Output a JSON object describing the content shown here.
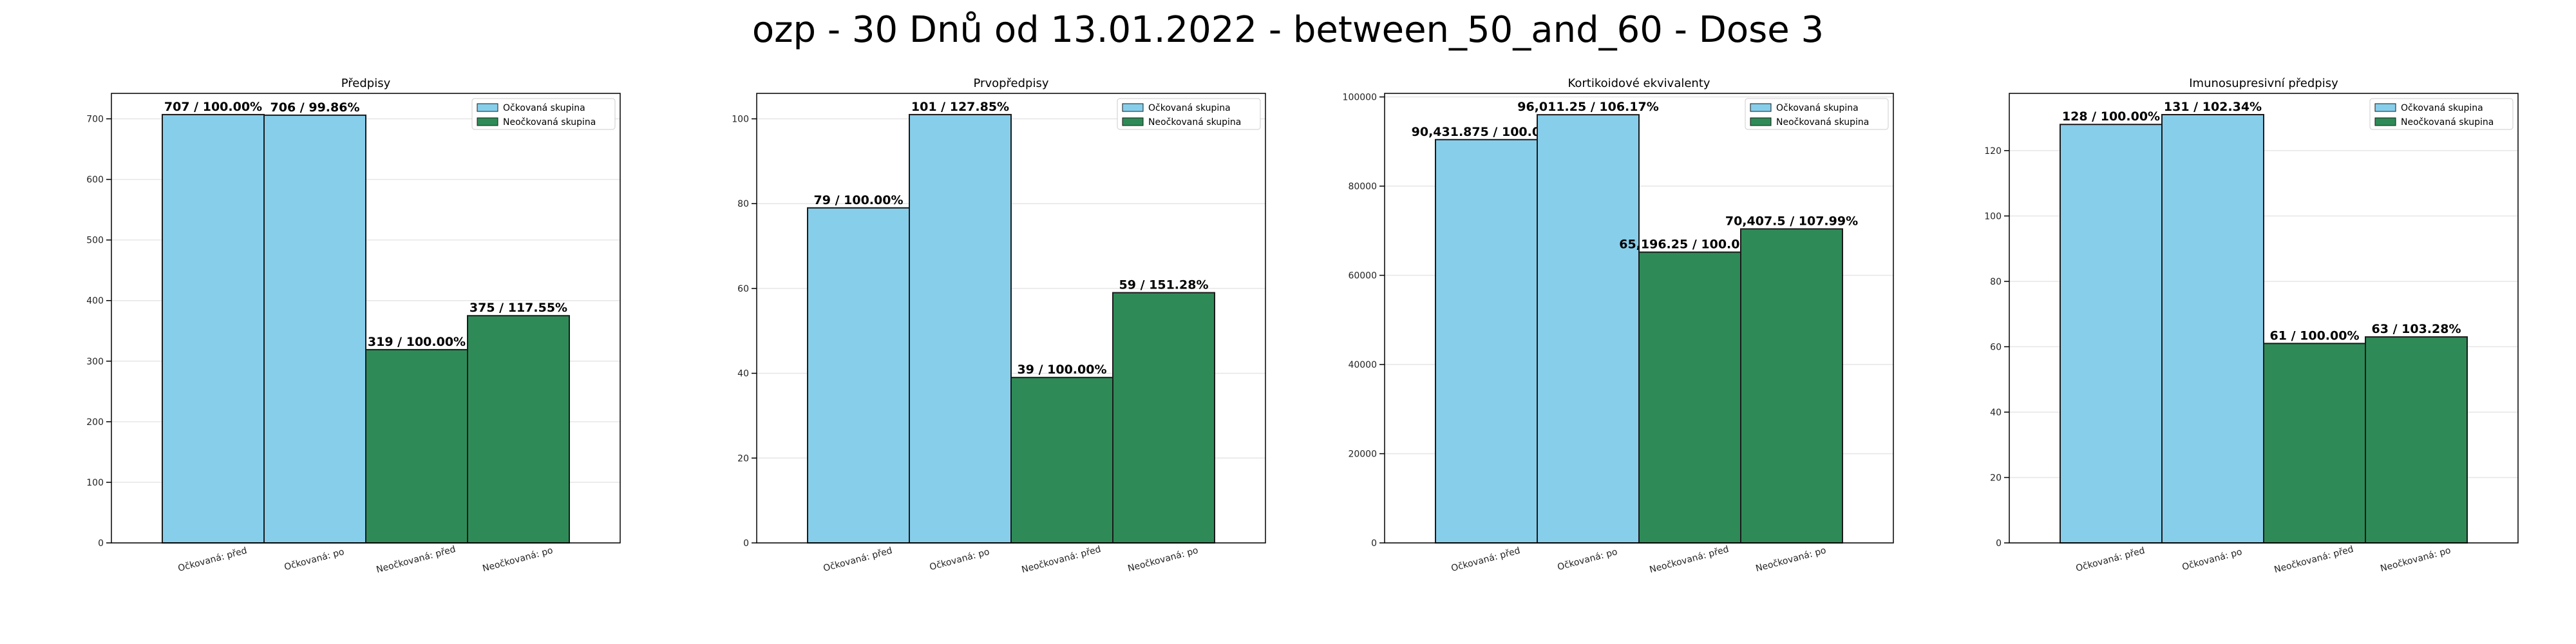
{
  "figure": {
    "title": "ozp - 30 Dnů od 13.01.2022 - between_50_and_60 - Dose 3"
  },
  "legend": {
    "entries": [
      "Očkovaná skupina",
      "Neočkovaná skupina"
    ],
    "colors": [
      "#87CEEB",
      "#2E8B57"
    ],
    "placement": "top-right"
  },
  "chart_data": [
    {
      "type": "bar",
      "title": "Předpisy",
      "categories": [
        "Očkovaná: před",
        "Očkovaná: po",
        "Neočkovaná: před",
        "Neočkovaná: po"
      ],
      "values": [
        707,
        706,
        319,
        375
      ],
      "labels": [
        "707 / 100.00%",
        "706 / 99.86%",
        "319 / 100.00%",
        "375 / 117.55%"
      ],
      "ylim": [
        0,
        742
      ],
      "yticks": [
        0,
        100,
        200,
        300,
        400,
        500,
        600,
        700
      ],
      "grid": true
    },
    {
      "type": "bar",
      "title": "Prvopředpisy",
      "categories": [
        "Očkovaná: před",
        "Očkovaná: po",
        "Neočkovaná: před",
        "Neočkovaná: po"
      ],
      "values": [
        79,
        101,
        39,
        59
      ],
      "labels": [
        "79 / 100.00%",
        "101 / 127.85%",
        "39 / 100.00%",
        "59 / 151.28%"
      ],
      "ylim": [
        0,
        106
      ],
      "yticks": [
        0,
        20,
        40,
        60,
        80,
        100
      ],
      "grid": true
    },
    {
      "type": "bar",
      "title": "Kortikoidové ekvivalenty",
      "categories": [
        "Očkovaná: před",
        "Očkovaná: po",
        "Neočkovaná: před",
        "Neočkovaná: po"
      ],
      "values": [
        90431.875,
        96011.25,
        65196.25,
        70407.5
      ],
      "labels": [
        "90,431.875 / 100.00%",
        "96,011.25 / 106.17%",
        "65,196.25 / 100.00%",
        "70,407.5 / 107.99%"
      ],
      "ylim": [
        0,
        100800
      ],
      "yticks": [
        0,
        20000,
        40000,
        60000,
        80000,
        100000
      ],
      "grid": true
    },
    {
      "type": "bar",
      "title": "Imunosupresivní předpisy",
      "categories": [
        "Očkovaná: před",
        "Očkovaná: po",
        "Neočkovaná: před",
        "Neočkovaná: po"
      ],
      "values": [
        128,
        131,
        61,
        63
      ],
      "labels": [
        "128 / 100.00%",
        "131 / 102.34%",
        "61 / 100.00%",
        "63 / 103.28%"
      ],
      "ylim": [
        0,
        137.5
      ],
      "yticks": [
        0,
        20,
        40,
        60,
        80,
        100,
        120
      ],
      "grid": true
    }
  ]
}
